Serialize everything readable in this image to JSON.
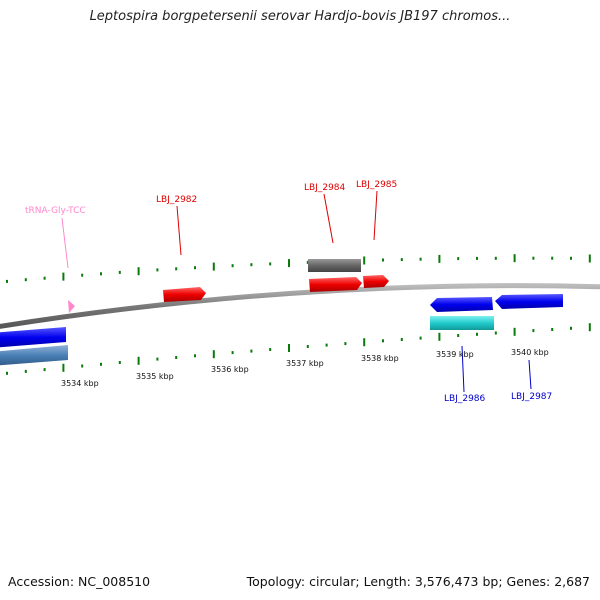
{
  "title": "Leptospira borgpetersenii serovar Hardjo-bovis JB197 chromos...",
  "footer": {
    "accession": "Accession: NC_008510",
    "stats": "Topology: circular; Length: 3,576,473 bp; Genes: 2,687"
  },
  "ticks": [
    "3534 kbp",
    "3535 kbp",
    "3536 kbp",
    "3537 kbp",
    "3538 kbp",
    "3539 kbp",
    "3540 kbp"
  ],
  "labels": {
    "trna": "tRNA-Gly-TCC",
    "lbj2982": "LBJ_2982",
    "lbj2984": "LBJ_2984",
    "lbj2985": "LBJ_2985",
    "lbj2986": "LBJ_2986",
    "lbj2987": "LBJ_2987"
  },
  "colors": {
    "forward_gene": "#ff0000",
    "reverse_gene": "#0000ee",
    "trna": "#ff88cc",
    "pseudo": "#666666",
    "cyan": "#22cccc",
    "steel": "#4a7fb5",
    "ticks": "#0a7a0a",
    "backbone": "#888888"
  }
}
